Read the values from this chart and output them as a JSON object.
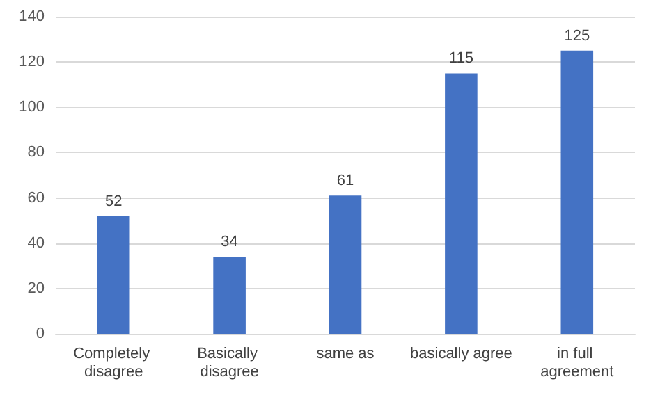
{
  "chart_data": {
    "type": "bar",
    "categories": [
      "Completely disagree",
      "Basically disagree",
      "same as",
      "basically agree",
      "in full agreement"
    ],
    "values": [
      52,
      34,
      61,
      115,
      125
    ],
    "color": "#4472c4",
    "ylim": [
      0,
      140
    ],
    "yticks": [
      0,
      20,
      40,
      60,
      80,
      100,
      120,
      140
    ],
    "grid": "y",
    "data_labels": true
  }
}
